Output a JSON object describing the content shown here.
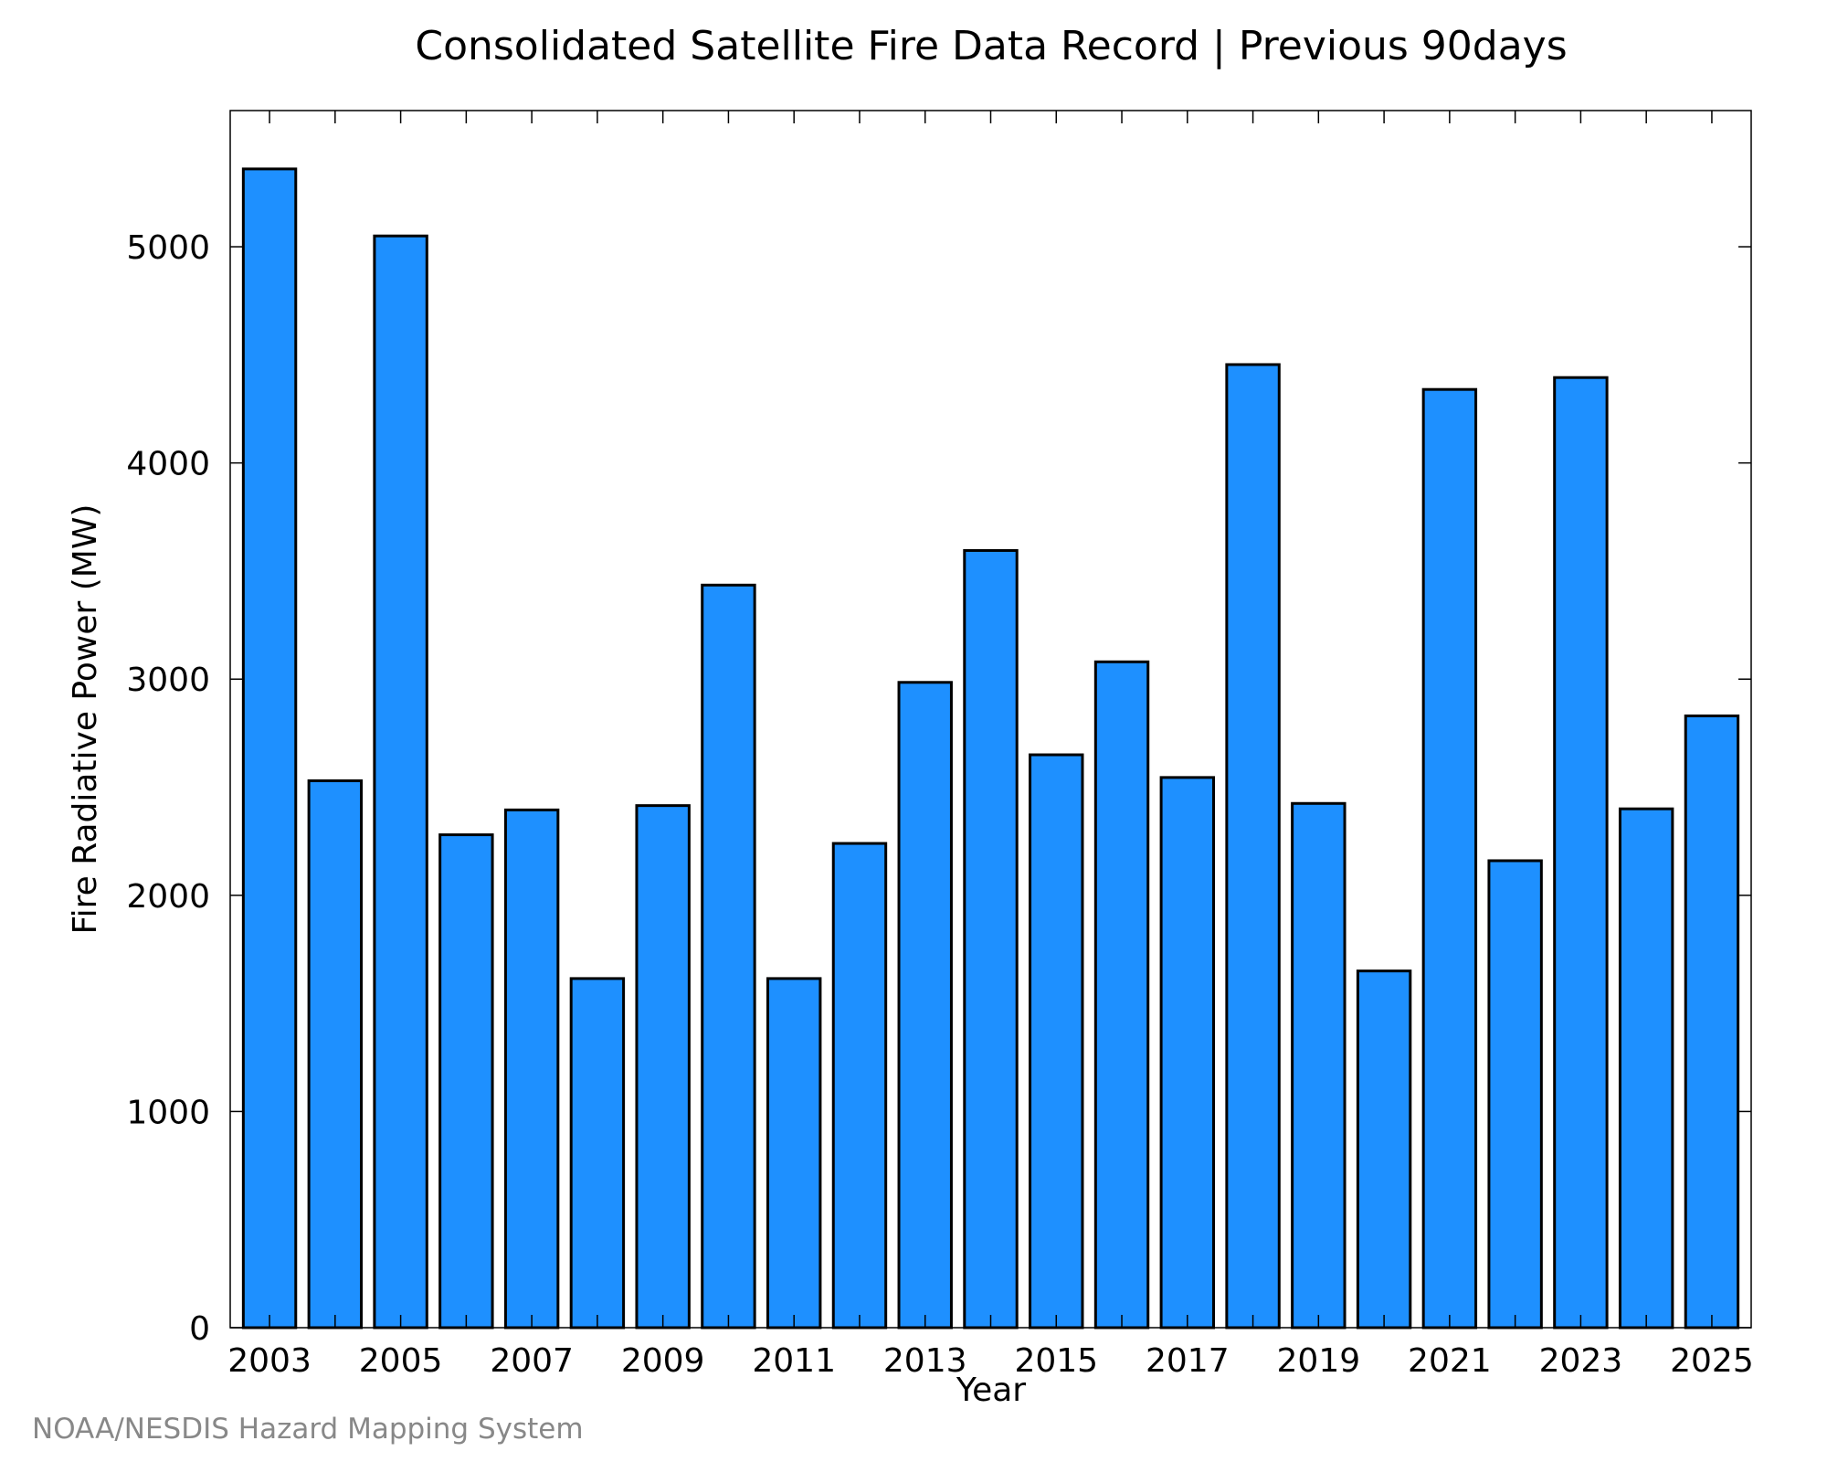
{
  "chart_data": {
    "type": "bar",
    "title": "Consolidated Satellite Fire Data Record | Previous 90days",
    "xlabel": "Year",
    "ylabel": "Fire Radiative Power (MW)",
    "categories": [
      "2003",
      "2004",
      "2005",
      "2006",
      "2007",
      "2008",
      "2009",
      "2010",
      "2011",
      "2012",
      "2013",
      "2014",
      "2015",
      "2016",
      "2017",
      "2018",
      "2019",
      "2020",
      "2021",
      "2022",
      "2023",
      "2024",
      "2025"
    ],
    "values": [
      5360,
      2530,
      5050,
      2280,
      2395,
      1615,
      2415,
      3435,
      1615,
      2240,
      2985,
      3595,
      2650,
      3080,
      2545,
      4455,
      2425,
      1650,
      4340,
      2160,
      4395,
      2400,
      2830
    ],
    "x_tick_labels": [
      "2003",
      "2005",
      "2007",
      "2009",
      "2011",
      "2013",
      "2015",
      "2017",
      "2019",
      "2021",
      "2023",
      "2025"
    ],
    "y_tick_labels": [
      "0",
      "1000",
      "2000",
      "3000",
      "4000",
      "5000"
    ],
    "ylim": [
      0,
      5630
    ],
    "grid": false,
    "bar_color": "#1e90ff"
  },
  "credit": "NOAA/NESDIS Hazard Mapping System"
}
